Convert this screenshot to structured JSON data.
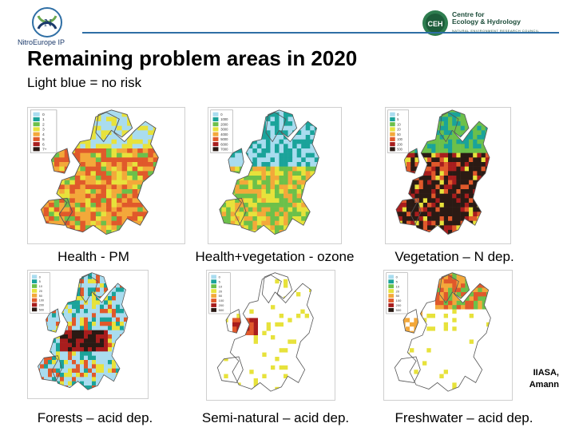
{
  "header": {
    "left_logo_text": "NitroEurope IP",
    "right_logo_line1": "Centre for",
    "right_logo_line2": "Ecology & Hydrology",
    "right_logo_sub": "NATURAL ENVIRONMENT RESEARCH COUNCIL",
    "right_logo_badge": "CEH"
  },
  "slide": {
    "title": "Remaining problem areas in 2020",
    "subtitle": "Light blue = no risk"
  },
  "maps": [
    {
      "caption": "Health - PM",
      "theme": "orange",
      "legend": [
        "0",
        "1",
        "2",
        "3",
        "4",
        "5",
        "6",
        "7+"
      ]
    },
    {
      "caption": "Health+vegetation - ozone",
      "theme": "teal",
      "legend": [
        "0",
        "1000",
        "2000",
        "3000",
        "4000",
        "5000",
        "6000",
        "7000"
      ]
    },
    {
      "caption": "Vegetation – N dep.",
      "theme": "dark",
      "legend": [
        "0",
        "5",
        "10",
        "20",
        "50",
        "100",
        "200",
        "500"
      ]
    },
    {
      "caption": "Forests – acid dep.",
      "theme": "dark-spotty",
      "legend": [
        "0",
        "5",
        "10",
        "20",
        "50",
        "100",
        "200",
        "500"
      ]
    },
    {
      "caption": "Semi-natural – acid dep.",
      "theme": "sparse",
      "legend": [
        "0",
        "5",
        "10",
        "20",
        "50",
        "100",
        "200",
        "500"
      ]
    },
    {
      "caption": "Freshwater – acid dep.",
      "theme": "nordic",
      "legend": [
        "0",
        "5",
        "10",
        "20",
        "50",
        "100",
        "200",
        "500"
      ]
    }
  ],
  "credit": {
    "line1": "IIASA,",
    "line2": "Amann"
  },
  "colors": {
    "no_risk": "#a9dcef",
    "accent_line": "#2f6fa5",
    "scale": [
      "#a9dcef",
      "#1aa39a",
      "#6cc04a",
      "#e7e23b",
      "#f3a83a",
      "#e0592b",
      "#a81d1d",
      "#2a1a14"
    ]
  }
}
